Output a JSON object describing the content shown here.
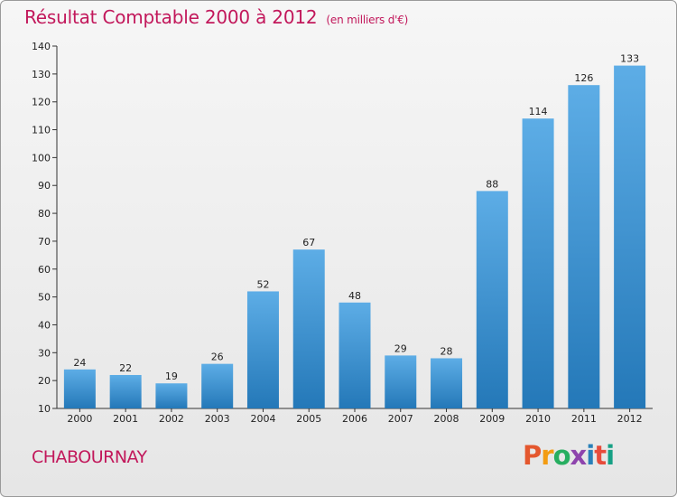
{
  "header": {
    "title": "Résultat Comptable 2000 à 2012",
    "subtitle": "(en milliers d'€)"
  },
  "footer": {
    "commune": "CHABOURNAY",
    "logo_text": "Proxiti"
  },
  "colors": {
    "title": "#c2185b",
    "bar_top": "#5dade6",
    "bar_bottom": "#2478b8",
    "logo": [
      "#e4572e",
      "#f39c12",
      "#27ae60",
      "#8e44ad",
      "#2980b9",
      "#e74c3c",
      "#16a085"
    ]
  },
  "chart_data": {
    "type": "bar",
    "title": "Résultat Comptable 2000 à 2012",
    "subtitle": "(en milliers d'€)",
    "xlabel": "",
    "ylabel": "",
    "categories": [
      "2000",
      "2001",
      "2002",
      "2003",
      "2004",
      "2005",
      "2006",
      "2007",
      "2008",
      "2009",
      "2010",
      "2011",
      "2012"
    ],
    "values": [
      24,
      22,
      19,
      26,
      52,
      67,
      48,
      29,
      28,
      88,
      114,
      126,
      133
    ],
    "ylim": [
      10,
      140
    ],
    "yticks": [
      10,
      20,
      30,
      40,
      50,
      60,
      70,
      80,
      90,
      100,
      110,
      120,
      130,
      140
    ],
    "grid": false,
    "legend": "none"
  }
}
